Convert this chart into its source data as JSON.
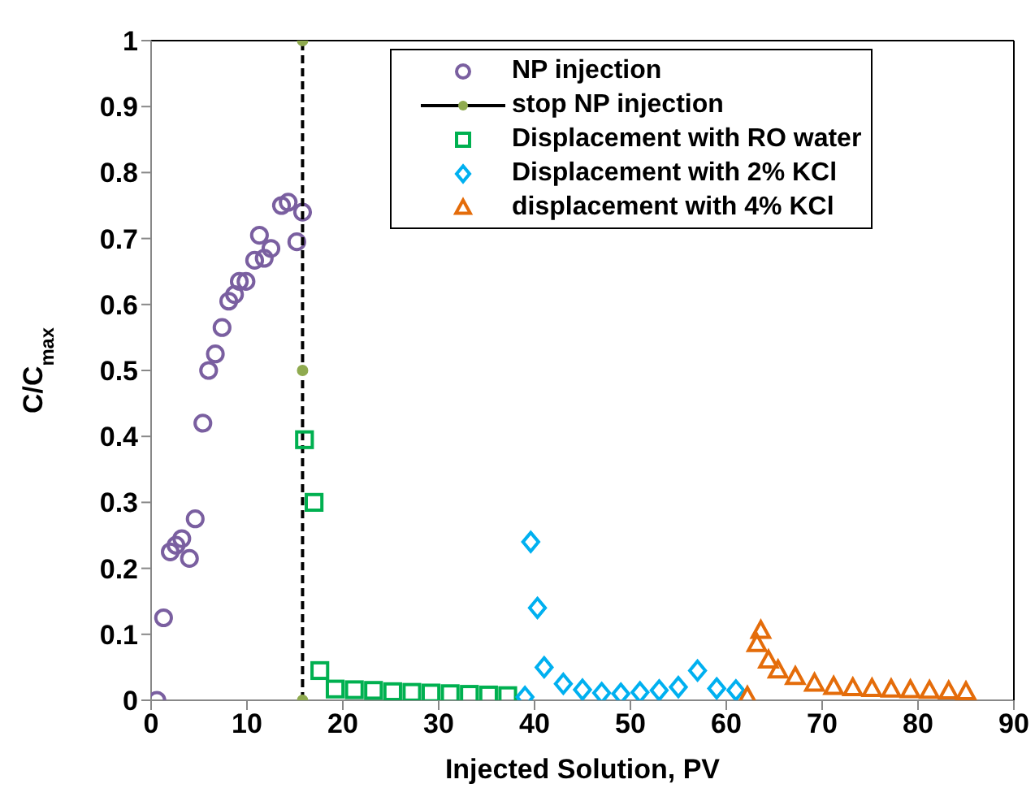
{
  "chart_data": {
    "type": "scatter",
    "xlabel": "Injected Solution, PV",
    "ylabel": "C/C$_{max}$",
    "xlim": [
      0,
      90
    ],
    "xticks": [
      0,
      10,
      20,
      30,
      40,
      50,
      60,
      70,
      80,
      90
    ],
    "ylim": [
      0,
      1
    ],
    "yticks": [
      {
        "value": 0,
        "label": "0"
      },
      {
        "value": 0.1,
        "label": "0.1"
      },
      {
        "value": 0.2,
        "label": "0.2"
      },
      {
        "value": 0.3,
        "label": "0.3"
      },
      {
        "value": 0.4,
        "label": "0.4"
      },
      {
        "value": 0.5,
        "label": "0.5"
      },
      {
        "value": 0.6,
        "label": "0.6"
      },
      {
        "value": 0.7,
        "label": "0.7"
      },
      {
        "value": 0.8,
        "label": "0.8"
      },
      {
        "value": 0.9,
        "label": "0.9"
      },
      {
        "value": 1,
        "label": "1"
      }
    ],
    "legend": "top right",
    "series": [
      {
        "name": "NP injection",
        "type": "scatter",
        "marker": "circle",
        "color": "#7a5fa0",
        "x": [
          0.6,
          1.3,
          2.0,
          2.6,
          3.2,
          4.0,
          4.6,
          5.4,
          6.0,
          6.7,
          7.4,
          8.1,
          8.7,
          9.2,
          9.9,
          10.8,
          11.3,
          11.8,
          12.5,
          13.6,
          14.3,
          15.2,
          15.8
        ],
        "values": [
          0,
          0.125,
          0.225,
          0.235,
          0.245,
          0.215,
          0.275,
          0.42,
          0.5,
          0.525,
          0.565,
          0.605,
          0.615,
          0.635,
          0.635,
          0.667,
          0.705,
          0.67,
          0.685,
          0.75,
          0.755,
          0.695,
          0.74
        ]
      },
      {
        "name": "stop NP injection",
        "type": "line",
        "marker": "circle",
        "line_style": "dashed",
        "color": "#000000",
        "colors": [
          "#8faa4f",
          "#8faa4f",
          "#8faa4f"
        ],
        "x": [
          15.8,
          15.8,
          15.8
        ],
        "values": [
          0,
          0.5,
          1
        ]
      },
      {
        "name": "Displacement with RO water",
        "type": "scatter",
        "marker": "square",
        "color": "#00b050",
        "x": [
          16,
          17,
          17.6,
          19.2,
          21.2,
          23.2,
          25.2,
          27.2,
          29.2,
          31.2,
          33.2,
          35.2,
          37.2
        ],
        "values": [
          0.395,
          0.3,
          0.045,
          0.017,
          0.016,
          0.015,
          0.013,
          0.012,
          0.011,
          0.01,
          0.009,
          0.008,
          0.007
        ]
      },
      {
        "name": "Displacement with 2% KCl",
        "type": "scatter",
        "marker": "diamond",
        "color": "#00b0f0",
        "x": [
          39,
          39.6,
          40.3,
          41,
          43,
          45,
          47,
          49,
          51,
          53,
          55,
          57,
          59,
          61
        ],
        "values": [
          0.005,
          0.24,
          0.14,
          0.05,
          0.025,
          0.016,
          0.011,
          0.01,
          0.012,
          0.015,
          0.02,
          0.045,
          0.018,
          0.015
        ]
      },
      {
        "name": "displacement with 4% KCl",
        "type": "scatter",
        "marker": "triangle",
        "color": "#e46c0a",
        "x": [
          62.2,
          63.2,
          63.6,
          64.4,
          65.4,
          67.2,
          69.2,
          71.2,
          73.2,
          75.2,
          77.2,
          79.2,
          81.2,
          83.2,
          85
        ],
        "values": [
          0.005,
          0.085,
          0.105,
          0.06,
          0.045,
          0.035,
          0.025,
          0.02,
          0.018,
          0.017,
          0.016,
          0.015,
          0.014,
          0.013,
          0.012
        ]
      }
    ]
  }
}
